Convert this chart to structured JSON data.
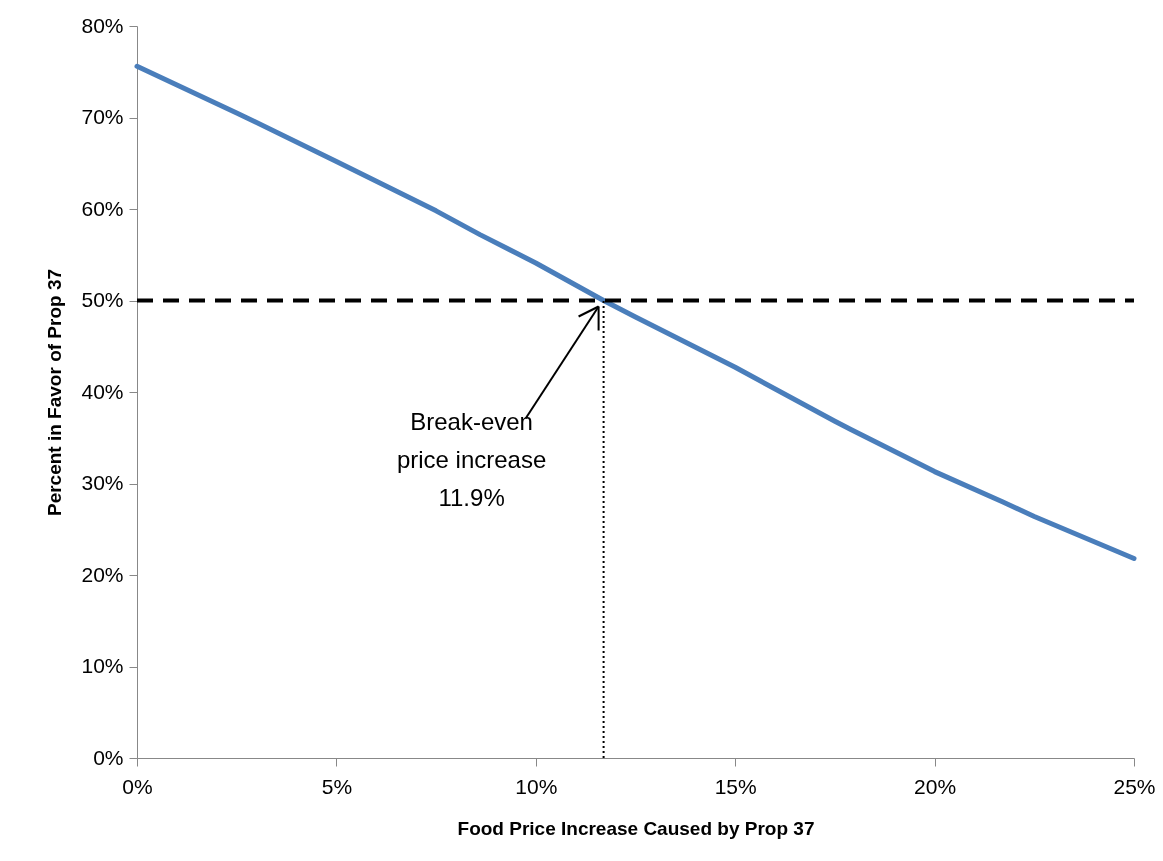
{
  "chart_data": {
    "type": "line",
    "xlabel": "Food Price Increase Caused by Prop 37",
    "ylabel": "Percent in Favor of Prop 37",
    "series": [
      {
        "color": "#4a7ebb",
        "x": [
          0,
          2.5,
          5,
          7.5,
          8.6,
          10,
          11.7,
          12.5,
          15,
          17.5,
          17.9,
          20,
          21.7,
          22.5,
          25
        ],
        "values": [
          75.6,
          70.5,
          65.2,
          59.8,
          57.2,
          54.1,
          50,
          48.2,
          42.7,
          36.8,
          35.9,
          31.3,
          28,
          26.4,
          21.8
        ]
      },
      {
        "color": "#000000",
        "line_style": "dotted",
        "x": [
          11.7,
          11.7
        ],
        "values": [
          0,
          50
        ]
      }
    ],
    "ref_lines": [
      {
        "axis": "y",
        "value": 50,
        "color": "#000000",
        "line_style": "dashed"
      }
    ],
    "annotations": [
      {
        "text": "Break-even\nprice increase\n11.9%",
        "x": 11.7,
        "y": 50
      }
    ],
    "xlim": [
      0,
      25
    ],
    "xticks": [
      {
        "value": 0,
        "label": "0%"
      },
      {
        "value": 5,
        "label": "5%"
      },
      {
        "value": 10,
        "label": "10%"
      },
      {
        "value": 15,
        "label": "15%"
      },
      {
        "value": 20,
        "label": "20%"
      },
      {
        "value": 25,
        "label": "25%"
      }
    ],
    "ylim": [
      0,
      80
    ],
    "yticks": [
      {
        "value": 0,
        "label": "0%"
      },
      {
        "value": 10,
        "label": "10%"
      },
      {
        "value": 20,
        "label": "20%"
      },
      {
        "value": 30,
        "label": "30%"
      },
      {
        "value": 40,
        "label": "40%"
      },
      {
        "value": 50,
        "label": "50%"
      },
      {
        "value": 60,
        "label": "60%"
      },
      {
        "value": 70,
        "label": "70%"
      },
      {
        "value": 80,
        "label": "80%"
      }
    ],
    "grid": false,
    "marker": "none"
  }
}
